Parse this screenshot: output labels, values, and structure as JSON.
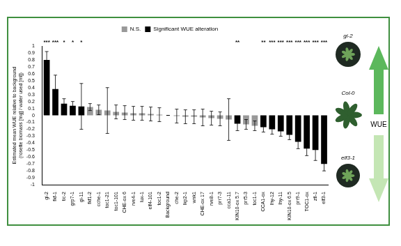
{
  "chart_data": {
    "type": "bar",
    "y_label": [
      "Estimated mean WUE relative to background",
      "(rosette biomass [mg] / water used [ml])"
    ],
    "categories": [
      "gi-2",
      "fkf-1",
      "tic-2",
      "grp7-1",
      "gi-11",
      "fkf1-2",
      "cche-1",
      "toc1-21",
      "toc1-101",
      "CHE-ox 6",
      "rve4-1",
      "lux-1",
      "elf4-101",
      "toc1-2",
      "Background",
      "che-2",
      "lkp2-1",
      "wnk1",
      "CHE-ox 17",
      "rve8-1",
      "prr7-3",
      "cca1-11",
      "KIN10-ox 5.7",
      "prr5-3",
      "toc1-1",
      "CCA1-ox",
      "lhy-12",
      "lhy-11",
      "KIN10-ox 6.5",
      "prr9-1",
      "TOC1-ox",
      "ztl-1",
      "elf3-1"
    ],
    "series": [
      {
        "name": "N.S.",
        "color": "#999999",
        "values": [
          null,
          null,
          null,
          null,
          null,
          0.12,
          0.08,
          0.07,
          0.05,
          0.04,
          0.03,
          0.03,
          0.02,
          0.01,
          0,
          -0.01,
          -0.02,
          -0.02,
          -0.03,
          -0.04,
          -0.05,
          -0.06,
          null,
          -0.13,
          -0.15,
          null,
          null,
          null,
          null,
          null,
          null,
          null,
          null
        ],
        "errors": [
          null,
          null,
          null,
          null,
          null,
          0.05,
          0.07,
          0.33,
          0.1,
          0.1,
          0.1,
          0.1,
          0.1,
          0.1,
          0,
          0.1,
          0.1,
          0.1,
          0.12,
          0.1,
          0.1,
          0.3,
          null,
          0.07,
          0.07,
          null,
          null,
          null,
          null,
          null,
          null,
          null,
          null
        ]
      },
      {
        "name": "Significant WUE alteration",
        "color": "#000000",
        "values": [
          0.8,
          0.38,
          0.17,
          0.14,
          0.13,
          null,
          null,
          null,
          null,
          null,
          null,
          null,
          null,
          null,
          null,
          null,
          null,
          null,
          null,
          null,
          null,
          null,
          -0.12,
          null,
          null,
          -0.17,
          -0.2,
          -0.23,
          -0.28,
          -0.38,
          -0.48,
          -0.5,
          -0.7
        ],
        "errors": [
          0.12,
          0.2,
          0.07,
          0.06,
          0.33,
          null,
          null,
          null,
          null,
          null,
          null,
          null,
          null,
          null,
          null,
          null,
          null,
          null,
          null,
          null,
          null,
          null,
          0.1,
          null,
          null,
          0.07,
          0.07,
          0.07,
          0.07,
          0.1,
          0.1,
          0.15,
          0.1
        ]
      }
    ],
    "annotations": [
      "***",
      "***",
      "*",
      "*",
      "*",
      null,
      null,
      null,
      null,
      null,
      null,
      null,
      null,
      null,
      null,
      null,
      null,
      null,
      null,
      null,
      null,
      null,
      "**",
      null,
      null,
      "**",
      "***",
      "***",
      "***",
      "***",
      "***",
      "***",
      "***"
    ],
    "ylim": [
      -1,
      1
    ],
    "yticks": [
      -1,
      -0.9,
      -0.8,
      -0.7,
      -0.6,
      -0.5,
      -0.4,
      -0.3,
      -0.2,
      -0.1,
      0,
      0.1,
      0.2,
      0.3,
      0.4,
      0.5,
      0.6,
      0.7,
      0.8,
      0.9,
      1
    ],
    "stacked": true,
    "grid": false,
    "legend": "top"
  },
  "side_panel": {
    "plants": [
      "gi-2",
      "Col-0",
      "elf3-1"
    ],
    "arrow_label": "WUE"
  }
}
